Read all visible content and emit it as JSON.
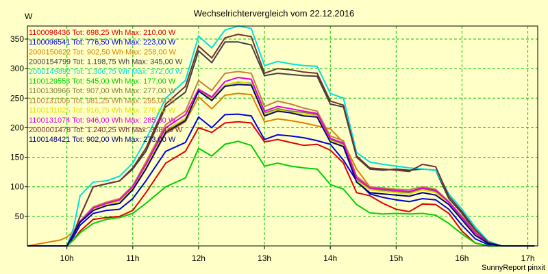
{
  "chart_data": {
    "type": "line",
    "title": "Wechselrichtervergleich vom 22.12.2016",
    "ylabel": "W",
    "xlabel": "",
    "credit": "SunnyReport pinxit",
    "x_ticks": [
      "10h",
      "11h",
      "12h",
      "13h",
      "14h",
      "15h",
      "16h",
      "17h"
    ],
    "y_ticks": [
      50,
      100,
      150,
      200,
      250,
      300,
      350
    ],
    "xlim": [
      9.4,
      17.15
    ],
    "ylim": [
      0,
      372
    ],
    "grid": true,
    "x": [
      9.4,
      9.9,
      10.0,
      10.1,
      10.2,
      10.4,
      10.6,
      10.8,
      11.0,
      11.2,
      11.5,
      11.8,
      12.0,
      12.2,
      12.4,
      12.6,
      12.8,
      13.0,
      13.2,
      13.4,
      13.6,
      13.8,
      14.0,
      14.2,
      14.4,
      14.6,
      14.8,
      15.0,
      15.2,
      15.4,
      15.6,
      15.8,
      16.0,
      16.2,
      16.4,
      16.6,
      16.8,
      17.0,
      17.1
    ],
    "series": [
      {
        "name": "1100096436 Tot: 698,25 Wh Max: 210,00 W",
        "color": "#e00000",
        "values": [
          0,
          0,
          0,
          10,
          25,
          45,
          48,
          50,
          60,
          90,
          140,
          160,
          200,
          192,
          208,
          210,
          208,
          176,
          180,
          175,
          170,
          172,
          162,
          140,
          90,
          85,
          72,
          62,
          58,
          71,
          70,
          55,
          25,
          5,
          0,
          0,
          0,
          0,
          0
        ]
      },
      {
        "name": "1100096541 Tot: 776,50 Wh Max: 223,00 W",
        "color": "#0000e0",
        "values": [
          0,
          0,
          0,
          15,
          35,
          55,
          60,
          62,
          80,
          110,
          160,
          175,
          218,
          200,
          222,
          223,
          220,
          180,
          188,
          186,
          183,
          178,
          172,
          145,
          110,
          88,
          82,
          78,
          75,
          80,
          78,
          62,
          35,
          12,
          2,
          0,
          0,
          0,
          0
        ]
      },
      {
        "name": "2000150622 Tot: 902,50 Wh Max: 258,00 W",
        "color": "#e08000",
        "values": [
          0,
          10,
          15,
          25,
          40,
          60,
          70,
          75,
          95,
          130,
          190,
          210,
          252,
          232,
          255,
          258,
          256,
          210,
          215,
          212,
          208,
          203,
          198,
          175,
          130,
          100,
          95,
          92,
          90,
          95,
          92,
          75,
          45,
          20,
          5,
          0,
          0,
          0,
          0
        ]
      },
      {
        "name": "2000154799 Tot: 1.198,75 Wh Max: 345,00 W",
        "color": "#404040",
        "values": [
          0,
          0,
          0,
          20,
          50,
          100,
          105,
          110,
          130,
          160,
          235,
          260,
          330,
          310,
          345,
          345,
          340,
          288,
          292,
          290,
          288,
          287,
          240,
          235,
          150,
          130,
          128,
          130,
          128,
          130,
          128,
          80,
          55,
          25,
          5,
          0,
          0,
          0,
          0
        ]
      },
      {
        "name": "2000149892 Tot: 1.306,75 Wh Max: 372,00 W",
        "color": "#00e0e0",
        "values": [
          0,
          0,
          0,
          30,
          85,
          108,
          110,
          118,
          140,
          180,
          250,
          280,
          355,
          335,
          365,
          372,
          368,
          305,
          312,
          308,
          305,
          304,
          258,
          250,
          158,
          142,
          138,
          135,
          132,
          130,
          128,
          88,
          62,
          32,
          8,
          0,
          0,
          0,
          0
        ]
      },
      {
        "name": "1100129553 Tot: 545,00 Wh Max: 177,00 W",
        "color": "#00d000",
        "values": [
          0,
          0,
          0,
          10,
          22,
          38,
          45,
          48,
          55,
          72,
          100,
          115,
          165,
          152,
          172,
          177,
          170,
          135,
          140,
          135,
          132,
          130,
          104,
          96,
          70,
          56,
          54,
          55,
          54,
          55,
          52,
          38,
          20,
          5,
          0,
          0,
          0,
          0,
          0
        ]
      },
      {
        "name": "1100130966 Tot: 907,00 Wh Max: 277,00 W",
        "color": "#808040",
        "values": [
          0,
          0,
          0,
          20,
          40,
          62,
          70,
          75,
          98,
          135,
          195,
          215,
          265,
          250,
          272,
          277,
          275,
          225,
          232,
          228,
          226,
          222,
          180,
          172,
          112,
          96,
          94,
          92,
          90,
          96,
          92,
          72,
          48,
          22,
          5,
          0,
          0,
          0,
          0
        ]
      },
      {
        "name": "1100131006 Tot: 981,25 Wh Max: 295,00 W",
        "color": "#c08040",
        "values": [
          0,
          0,
          0,
          22,
          42,
          66,
          74,
          80,
          102,
          142,
          205,
          228,
          280,
          263,
          292,
          295,
          292,
          236,
          245,
          240,
          233,
          228,
          186,
          178,
          118,
          100,
          98,
          96,
          95,
          100,
          96,
          75,
          50,
          24,
          6,
          0,
          0,
          0,
          0
        ]
      },
      {
        "name": "1100131025 Tot: 916,75 Wh Max: 278,00 W",
        "color": "#e0e000",
        "values": [
          0,
          0,
          0,
          20,
          40,
          62,
          70,
          75,
          98,
          134,
          196,
          216,
          262,
          248,
          272,
          278,
          274,
          222,
          230,
          226,
          223,
          220,
          178,
          170,
          110,
          95,
          92,
          90,
          88,
          95,
          90,
          72,
          46,
          20,
          4,
          0,
          0,
          0,
          0
        ]
      },
      {
        "name": "1100131074 Tot: 946,00 Wh Max: 285,00 W",
        "color": "#e000e0",
        "values": [
          0,
          0,
          0,
          21,
          41,
          64,
          72,
          78,
          100,
          138,
          200,
          222,
          265,
          252,
          278,
          285,
          282,
          228,
          236,
          232,
          228,
          224,
          182,
          174,
          115,
          98,
          96,
          94,
          92,
          98,
          94,
          74,
          48,
          22,
          5,
          0,
          0,
          0,
          0
        ]
      },
      {
        "name": "2000001478 Tot: 1.240,25 Wh Max: 358,00 W",
        "color": "#703030",
        "values": [
          0,
          0,
          0,
          20,
          50,
          100,
          105,
          110,
          132,
          165,
          240,
          270,
          338,
          318,
          352,
          358,
          354,
          292,
          300,
          298,
          294,
          292,
          245,
          238,
          152,
          132,
          130,
          128,
          126,
          138,
          134,
          84,
          58,
          28,
          6,
          0,
          0,
          0,
          0
        ]
      },
      {
        "name": "1100148421 Tot: 902,00 Wh Max: 273,00 W",
        "color": "#000080",
        "values": [
          0,
          0,
          0,
          20,
          40,
          60,
          68,
          72,
          95,
          130,
          192,
          212,
          262,
          246,
          270,
          273,
          272,
          220,
          228,
          225,
          220,
          218,
          176,
          168,
          108,
          90,
          88,
          86,
          84,
          90,
          86,
          70,
          44,
          18,
          4,
          0,
          0,
          0,
          0
        ]
      }
    ]
  }
}
